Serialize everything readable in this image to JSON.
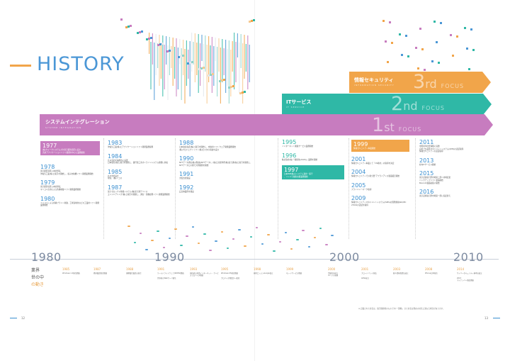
{
  "heading": "HISTORY",
  "page_left": "12",
  "page_right": "13",
  "bands": {
    "security": {
      "title": "情報セキュリティ",
      "sub": "INFORMATION SECURITY",
      "focus_num": "3",
      "focus_suf": "rd",
      "focus_word": "FOCUS",
      "color": "#f1a54a"
    },
    "it": {
      "title": "ITサービス",
      "sub": "IT SERVICE",
      "focus_num": "2",
      "focus_suf": "nd",
      "focus_word": "FOCUS",
      "color": "#2fb8a6"
    },
    "si": {
      "title": "システムインテグレーション",
      "sub": "SYSTEM INTEGRATION",
      "focus_num": "1",
      "focus_suf": "st",
      "focus_word": "FOCUS",
      "color": "#c77cbf"
    }
  },
  "col1": [
    {
      "year": "1977",
      "text": "(株)ウォークシステムズを東京都新宿区に設立\n汎用アプリケーションソフト開発を中心に業務開始",
      "highlight": true
    },
    {
      "year": "1978",
      "text": "東京都区港区に本社移転\n沖電気工業(株)と取引を開始し、電子交換機ソフト開発業務開始"
    },
    {
      "year": "1979",
      "text": "東京都渋谷区に本社移転\nマイコン応用による各種制御ソフト開発業務開始"
    },
    {
      "year": "1980",
      "text": "ミニコンによる各種プラント制御、工場自動化などの工業用ソフト開発業務開始"
    }
  ],
  "col2": [
    {
      "year": "1983",
      "text": "沖電気工業(株)とアプリケーションソフト開発業務提携"
    },
    {
      "year": "1984",
      "text": "九州支社を福岡市に設置\n日本電気(株)と取引を開始し、銀行第三次オンラインシステム開発に参加"
    },
    {
      "year": "1985",
      "text": "九州支社設立\n現在、(株)イコス"
    },
    {
      "year": "1987",
      "text": "富士ゼロックス情報システム(株)富士通デバイス\nエンジニアリング(株)と取引を開始し、通信・画像処理ソフト開発業務開始"
    }
  ],
  "col3": [
    {
      "year": "1988",
      "text": "日本電信電話(株)と取引を開始し、交換用ソフトウェア開発業務開始\n(株)プロジェクトソフト(株)ビスタの前進を設立"
    },
    {
      "year": "1990",
      "text": "NTTデータ通信(株)(現(株)NTTデータ)、(株)日立製作所(株)富士通(株)と取引を開始し、\nNTTデータとの間で共同開発を開始"
    },
    {
      "year": "1991",
      "text": "大阪支社開設"
    },
    {
      "year": "1992",
      "text": "広島事業所を開設"
    }
  ],
  "col4": [
    {
      "year": "1995",
      "text": "インターネット関連サービス業務開始"
    },
    {
      "year": "1996",
      "text": "株式会社(株)「情報化(ASOS)」業務を開始"
    },
    {
      "year": "1997",
      "text": "日本IBM(株)とシステム運用・保守\n、インフラ技術支援業務開始",
      "highlight": true
    }
  ],
  "col5": [
    {
      "year": "1999",
      "text": "情報セキュリティ事業開始",
      "highlight": true
    },
    {
      "year": "2001",
      "text": "情報セキュリティ事業にて「CS格付」の取得を決定"
    },
    {
      "year": "2004",
      "text": "情報セキュリティでの新分野 アプライアンス製品販売開始"
    },
    {
      "year": "2005",
      "text": "プライバシーマーク取得"
    },
    {
      "year": "2009",
      "text": "情報セキュリティマネジメントシステム(ISMS)の国際規格ISO/IEC 27001の認証を取得"
    }
  ],
  "col6": [
    {
      "year": "2011",
      "text": "中国東洋社会保険に協賛\n自社プロ品質マネジメントシステム(QMS)の認証取得\n情報セキュリティの認証取得"
    },
    {
      "year": "2013",
      "text": "社内ITサービス開始"
    },
    {
      "year": "2015",
      "text": "東京証券取引所市場第二部へ市場変更\nバックアップソフト製品開始\nBoxcom製品取扱い開始"
    },
    {
      "year": "2016",
      "text": "東京証券取引所市場第一部に指定替え"
    }
  ],
  "decades": [
    "1980",
    "1990",
    "2000",
    "2010"
  ],
  "industry_label": [
    "業界",
    "世の中",
    "の動き"
  ],
  "industry_events": [
    {
      "year": "1985",
      "text": "Windows 1.0発売開始"
    },
    {
      "year": "1987",
      "text": "携帯電話販売開始"
    },
    {
      "year": "1988",
      "text": "国際電信電話の統合"
    },
    {
      "year": "1991",
      "text": "ワールドワイドウェブ(WWW)開始\n\n世界初のWebサーバ誕生"
    },
    {
      "year": "1993",
      "text": "国内初の商用インターネット・サービスプロバイダ開始"
    },
    {
      "year": "1995",
      "text": "Windows 95発売開始\n\nプロバイダ事業が一般化"
    },
    {
      "year": "1998",
      "text": "検索エンジンGoogle設立"
    },
    {
      "year": "1999",
      "text": "iモードサービス開始"
    },
    {
      "year": "2000",
      "text": "IT基本法成立\nITバブル崩壊"
    },
    {
      "year": "2001",
      "text": "ブロードバンド普及\n\nADSL拡大"
    },
    {
      "year": "2003",
      "text": "個人情報保護法成立"
    },
    {
      "year": "2008",
      "text": "iPhone日本発売"
    },
    {
      "year": "2014",
      "text": "サイバーセキュリティ基本法成立\n\n2015\nマイナンバー制度開始"
    }
  ],
  "footnote": "※ 記載された社名は、取引開始時のものです(一部略)。また社名は現在の社名と異なる場合があります。"
}
